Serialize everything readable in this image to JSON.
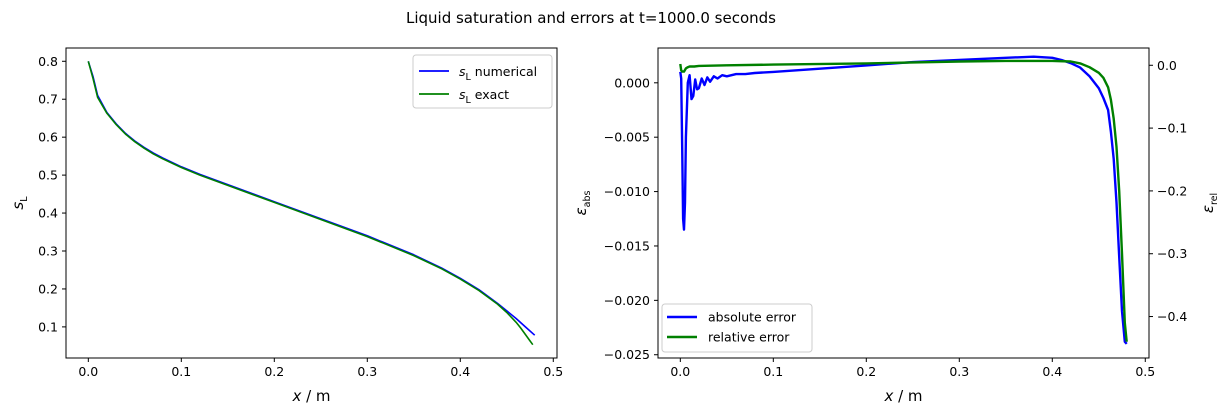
{
  "figure": {
    "title": "Liquid saturation and errors at t=1000.0 seconds"
  },
  "chart_data": [
    {
      "type": "line",
      "xlabel": "x / m",
      "ylabel": "sL",
      "xlim": [
        -0.024,
        0.504
      ],
      "ylim": [
        0.018,
        0.835
      ],
      "xticks": [
        {
          "value": 0.0,
          "label": "0.0"
        },
        {
          "value": 0.1,
          "label": "0.1"
        },
        {
          "value": 0.2,
          "label": "0.2"
        },
        {
          "value": 0.3,
          "label": "0.3"
        },
        {
          "value": 0.4,
          "label": "0.4"
        },
        {
          "value": 0.5,
          "label": "0.5"
        }
      ],
      "yticks": [
        {
          "value": 0.1,
          "label": "0.1"
        },
        {
          "value": 0.2,
          "label": "0.2"
        },
        {
          "value": 0.3,
          "label": "0.3"
        },
        {
          "value": 0.4,
          "label": "0.4"
        },
        {
          "value": 0.5,
          "label": "0.5"
        },
        {
          "value": 0.6,
          "label": "0.6"
        },
        {
          "value": 0.7,
          "label": "0.7"
        },
        {
          "value": 0.8,
          "label": "0.8"
        }
      ],
      "legend": {
        "position": "upper right",
        "entries": [
          {
            "label": "sL numerical",
            "color": "#0000ff"
          },
          {
            "label": "sL exact",
            "color": "#008000"
          }
        ]
      },
      "series": [
        {
          "name": "sL numerical",
          "color": "#0000ff",
          "x": [
            0.0,
            0.005,
            0.01,
            0.02,
            0.03,
            0.04,
            0.05,
            0.06,
            0.07,
            0.08,
            0.1,
            0.12,
            0.15,
            0.2,
            0.25,
            0.3,
            0.35,
            0.38,
            0.4,
            0.42,
            0.44,
            0.45,
            0.46,
            0.47,
            0.48
          ],
          "y": [
            0.8,
            0.76,
            0.71,
            0.665,
            0.635,
            0.61,
            0.59,
            0.573,
            0.558,
            0.545,
            0.522,
            0.502,
            0.475,
            0.43,
            0.385,
            0.34,
            0.29,
            0.255,
            0.228,
            0.198,
            0.162,
            0.142,
            0.122,
            0.1,
            0.078
          ]
        },
        {
          "name": "sL exact",
          "color": "#008000",
          "x": [
            0.0,
            0.005,
            0.01,
            0.02,
            0.03,
            0.04,
            0.05,
            0.06,
            0.07,
            0.08,
            0.1,
            0.12,
            0.15,
            0.2,
            0.25,
            0.3,
            0.35,
            0.38,
            0.4,
            0.42,
            0.44,
            0.45,
            0.46,
            0.465,
            0.47,
            0.475,
            0.478
          ],
          "y": [
            0.8,
            0.755,
            0.705,
            0.663,
            0.633,
            0.608,
            0.588,
            0.571,
            0.556,
            0.543,
            0.52,
            0.5,
            0.473,
            0.428,
            0.383,
            0.338,
            0.288,
            0.253,
            0.226,
            0.196,
            0.16,
            0.138,
            0.112,
            0.097,
            0.08,
            0.063,
            0.053
          ]
        }
      ]
    },
    {
      "type": "line",
      "xlabel": "x / m",
      "ylabel": "εabs",
      "y2label": "εrel",
      "xlim": [
        -0.024,
        0.504
      ],
      "ylim": [
        -0.0253,
        0.0032
      ],
      "y2lim": [
        -0.466,
        0.0275
      ],
      "xticks": [
        {
          "value": 0.0,
          "label": "0.0"
        },
        {
          "value": 0.1,
          "label": "0.1"
        },
        {
          "value": 0.2,
          "label": "0.2"
        },
        {
          "value": 0.3,
          "label": "0.3"
        },
        {
          "value": 0.4,
          "label": "0.4"
        },
        {
          "value": 0.5,
          "label": "0.5"
        }
      ],
      "yticks": [
        {
          "value": 0.0,
          "label": "0.000"
        },
        {
          "value": -0.005,
          "label": "−0.005"
        },
        {
          "value": -0.01,
          "label": "−0.010"
        },
        {
          "value": -0.015,
          "label": "−0.015"
        },
        {
          "value": -0.02,
          "label": "−0.020"
        },
        {
          "value": -0.025,
          "label": "−0.025"
        }
      ],
      "y2ticks": [
        {
          "value": 0.0,
          "label": "0.0"
        },
        {
          "value": -0.1,
          "label": "−0.1"
        },
        {
          "value": -0.2,
          "label": "−0.2"
        },
        {
          "value": -0.3,
          "label": "−0.3"
        },
        {
          "value": -0.4,
          "label": "−0.4"
        }
      ],
      "legend": {
        "position": "lower left",
        "entries": [
          {
            "label": "absolute error",
            "color": "#0000ff"
          },
          {
            "label": "relative error",
            "color": "#008000"
          }
        ]
      },
      "series": [
        {
          "name": "absolute error",
          "axis": "left",
          "color": "#0000ff",
          "x": [
            0.0,
            0.001,
            0.002,
            0.003,
            0.004,
            0.005,
            0.006,
            0.008,
            0.01,
            0.012,
            0.014,
            0.016,
            0.018,
            0.02,
            0.023,
            0.026,
            0.029,
            0.032,
            0.036,
            0.04,
            0.045,
            0.05,
            0.06,
            0.07,
            0.08,
            0.1,
            0.15,
            0.2,
            0.25,
            0.3,
            0.35,
            0.38,
            0.4,
            0.41,
            0.42,
            0.43,
            0.44,
            0.45,
            0.455,
            0.46,
            0.463,
            0.466,
            0.469,
            0.472,
            0.475,
            0.478,
            0.48
          ],
          "y": [
            0.001,
            0.0004,
            -0.006,
            -0.0125,
            -0.0135,
            -0.011,
            -0.005,
            0.0,
            0.0007,
            -0.0015,
            -0.0012,
            0.0003,
            -0.0006,
            -0.0005,
            0.0004,
            -0.0002,
            0.0005,
            0.0001,
            0.0006,
            0.0004,
            0.0007,
            0.0006,
            0.0008,
            0.0008,
            0.0009,
            0.001,
            0.0013,
            0.0016,
            0.0019,
            0.0021,
            0.0023,
            0.0024,
            0.0023,
            0.0021,
            0.0018,
            0.0014,
            0.0006,
            -0.0005,
            -0.0014,
            -0.0025,
            -0.0045,
            -0.007,
            -0.011,
            -0.016,
            -0.021,
            -0.0238,
            -0.024
          ]
        },
        {
          "name": "relative error",
          "axis": "right",
          "color": "#008000",
          "x": [
            0.0,
            0.001,
            0.002,
            0.004,
            0.006,
            0.008,
            0.01,
            0.015,
            0.02,
            0.05,
            0.1,
            0.2,
            0.3,
            0.35,
            0.4,
            0.42,
            0.43,
            0.44,
            0.45,
            0.455,
            0.46,
            0.463,
            0.466,
            0.469,
            0.472,
            0.475,
            0.478,
            0.48
          ],
          "y": [
            0.002,
            -0.008,
            -0.01,
            -0.01,
            -0.005,
            -0.003,
            -0.002,
            -0.002,
            -0.001,
            0.0,
            0.001,
            0.003,
            0.006,
            0.007,
            0.007,
            0.006,
            0.003,
            -0.003,
            -0.012,
            -0.02,
            -0.035,
            -0.055,
            -0.085,
            -0.13,
            -0.2,
            -0.3,
            -0.41,
            -0.44
          ]
        }
      ]
    }
  ]
}
